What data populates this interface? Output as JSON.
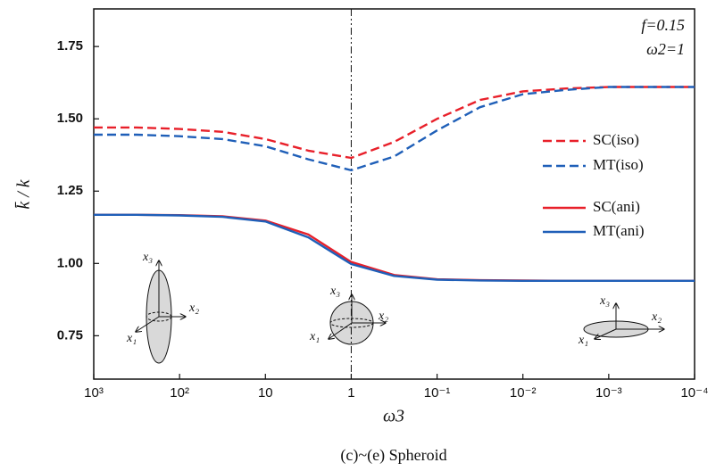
{
  "chart_data": {
    "type": "line",
    "x_label": "ω3",
    "y_label": "k̄ / k",
    "caption": "(c)~(e) Spheroid",
    "annotations": [
      "f=0.15",
      "ω2=1"
    ],
    "insets": [
      [
        "x₁",
        "x₂",
        "x₃"
      ],
      [
        "x₁",
        "x₂",
        "x₃"
      ],
      [
        "x₁",
        "x₂",
        "x₃"
      ]
    ],
    "x_log": true,
    "xlim": [
      1000,
      0.0001
    ],
    "xticks": [
      {
        "value": 1000,
        "label": "10³"
      },
      {
        "value": 100,
        "label": "10²"
      },
      10,
      1,
      {
        "value": 0.1,
        "label": "10⁻¹"
      },
      {
        "value": 0.01,
        "label": "10⁻²"
      },
      {
        "value": 0.001,
        "label": "10⁻³"
      },
      {
        "value": 0.0001,
        "label": "10⁻⁴"
      }
    ],
    "ylim": [
      0.6,
      1.88
    ],
    "yticks": [
      0.75,
      {
        "value": 1,
        "label": "1.00"
      },
      1.25,
      {
        "value": 1.5,
        "label": "1.50"
      },
      1.75
    ],
    "vline": 1,
    "legend": "right",
    "x": [
      1000,
      316.2,
      100,
      31.62,
      10,
      3.162,
      1,
      0.3162,
      0.1,
      0.03162,
      0.01,
      0.003162,
      0.001,
      0.0003162,
      0.0001
    ],
    "series": [
      {
        "name": "SC(iso)",
        "color": "#e8202a",
        "dash": true,
        "values": [
          1.47,
          1.47,
          1.465,
          1.455,
          1.43,
          1.39,
          1.365,
          1.42,
          1.5,
          1.565,
          1.595,
          1.605,
          1.61,
          1.61,
          1.61
        ]
      },
      {
        "name": "MT(iso)",
        "color": "#1f5fb8",
        "dash": true,
        "values": [
          1.445,
          1.445,
          1.44,
          1.43,
          1.405,
          1.36,
          1.322,
          1.37,
          1.46,
          1.54,
          1.585,
          1.6,
          1.61,
          1.61,
          1.61
        ]
      },
      {
        "name": "SC(ani)",
        "color": "#e8202a",
        "dash": false,
        "values": [
          1.168,
          1.168,
          1.167,
          1.163,
          1.148,
          1.1,
          1.005,
          0.96,
          0.945,
          0.942,
          0.941,
          0.94,
          0.94,
          0.94,
          0.94
        ]
      },
      {
        "name": "MT(ani)",
        "color": "#1f5fb8",
        "dash": false,
        "values": [
          1.168,
          1.168,
          1.166,
          1.161,
          1.145,
          1.09,
          0.998,
          0.957,
          0.944,
          0.941,
          0.94,
          0.94,
          0.94,
          0.94,
          0.94
        ]
      }
    ]
  }
}
